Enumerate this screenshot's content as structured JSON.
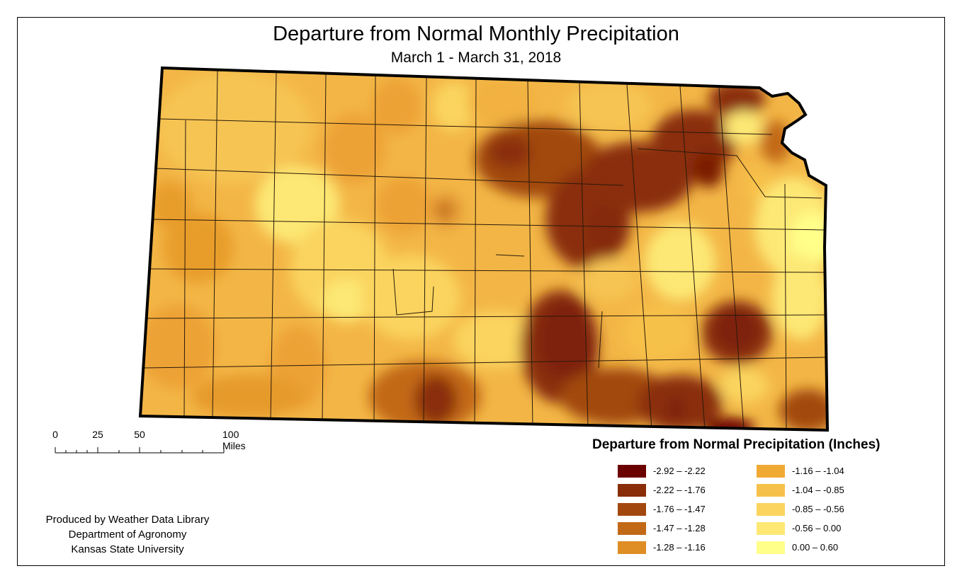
{
  "title": "Departure from Normal Monthly Precipitation",
  "subtitle": "March 1 - March 31, 2018",
  "scale_bar": {
    "labels": [
      "0",
      "25",
      "50",
      "100 Miles"
    ]
  },
  "credits": {
    "line1": "Produced by Weather Data Library",
    "line2": "Department of Agronomy",
    "line3": "Kansas State University"
  },
  "legend": {
    "title": "Departure from Normal Precipitation (Inches)",
    "classes": [
      {
        "label": "-2.92 – -2.22",
        "color": "#6b0000"
      },
      {
        "label": "-2.22 – -1.76",
        "color": "#8a2e0a"
      },
      {
        "label": "-1.76 – -1.47",
        "color": "#a2480f"
      },
      {
        "label": "-1.47 – -1.28",
        "color": "#c26918"
      },
      {
        "label": "-1.28 – -1.16",
        "color": "#df8d25"
      },
      {
        "label": "-1.16 – -1.04",
        "color": "#f0aa34"
      },
      {
        "label": "-1.04 – -0.85",
        "color": "#f6c14a"
      },
      {
        "label": "-0.85 – -0.56",
        "color": "#fad45e"
      },
      {
        "label": "-0.56 – 0.00",
        "color": "#fde874"
      },
      {
        "label": "0.00 – 0.60",
        "color": "#ffff8a"
      }
    ]
  }
}
